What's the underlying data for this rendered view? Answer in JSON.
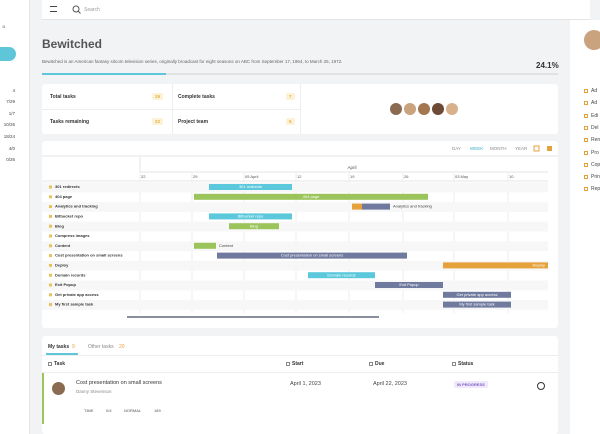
{
  "sidebar": {
    "items": [
      "o",
      "4",
      "7/29",
      "1/7",
      "10/26",
      "18/24",
      "4/0",
      "0/26"
    ]
  },
  "topbar": {
    "search": "Search"
  },
  "project": {
    "title": "Bewitched",
    "description": "Bewitched is an American fantasy sitcom television series, originally broadcast for eight seasons on ABC from September 17, 1964, to March 25, 1972.",
    "progress": "24.1%",
    "stats": [
      {
        "label": "Total tasks",
        "value": "29"
      },
      {
        "label": "Complete tasks",
        "value": "7"
      },
      {
        "label": "Tasks remaining",
        "value": "22"
      },
      {
        "label": "Project team",
        "value": "5"
      }
    ]
  },
  "gantt": {
    "views": [
      "DAY",
      "WEEK",
      "MONTH",
      "YEAR"
    ],
    "month": "April",
    "dates": [
      "22",
      "29",
      "05 April",
      "12",
      "19",
      "26",
      "03 May",
      "10"
    ],
    "tasks": [
      "301 redirects",
      "404 page",
      "Analytics and tracking",
      "Bitbucket repo",
      "Blog",
      "Compress images",
      "Content",
      "Cost presentation on small screens",
      "Deploy",
      "Domain records",
      "Exit Popup",
      "Get private app access",
      "My first sample task"
    ]
  },
  "tabs": [
    {
      "label": "My tasks",
      "count": "9"
    },
    {
      "label": "Other tasks",
      "count": "20"
    }
  ],
  "table": {
    "headers": [
      "Task",
      "Start",
      "Due",
      "Status"
    ],
    "rows": [
      {
        "task": "Cost presentation on small screens",
        "assignee": "Danny Stevenson",
        "start": "April 1, 2023",
        "due": "April 22, 2023",
        "status": "IN PROGRESS",
        "meta": [
          "TIME",
          "0/4",
          "NORMAL",
          "189"
        ]
      }
    ]
  },
  "menu": {
    "items": [
      "Ad",
      "Ad",
      "Edi",
      "Del",
      "Ren",
      "Pro",
      "Cop",
      "Prin",
      "Rep"
    ]
  }
}
